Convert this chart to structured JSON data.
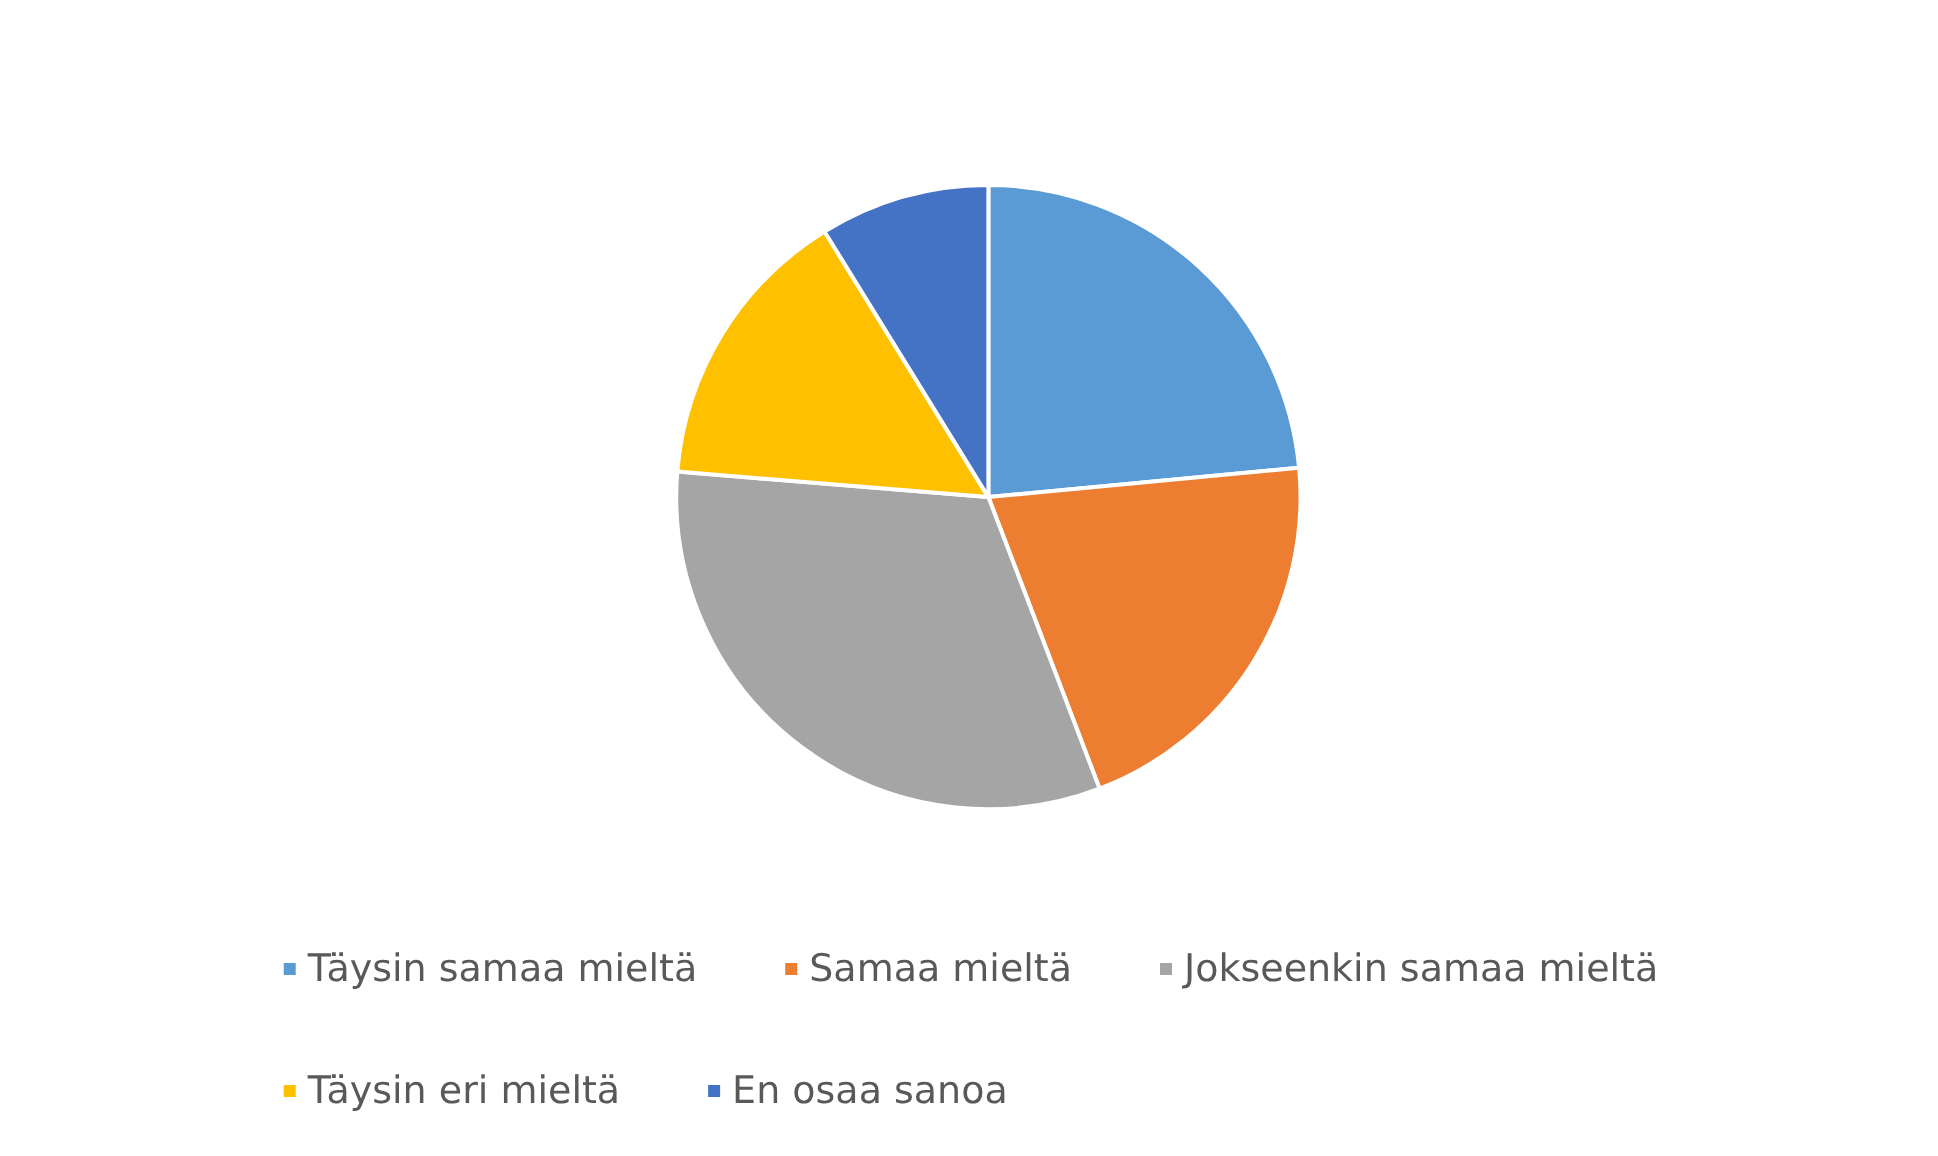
{
  "chart_data": {
    "type": "pie",
    "categories": [
      "Täysin samaa mieltä",
      "Samaa mieltä",
      "Jokseenkin samaa mieltä",
      "Täysin eri mieltä",
      "En osaa sanoa"
    ],
    "values": [
      23.5,
      20.7,
      32.1,
      14.9,
      8.8
    ],
    "colors": [
      "#5b9bd5",
      "#ed7d31",
      "#a5a5a5",
      "#ffc000",
      "#4472c4"
    ],
    "legend": "bottom"
  }
}
